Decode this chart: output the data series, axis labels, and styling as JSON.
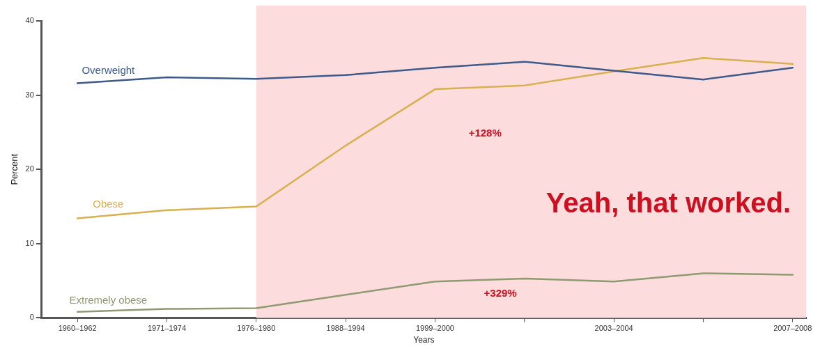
{
  "chart_data": {
    "type": "line",
    "xlabel": "Years",
    "ylabel": "Percent",
    "categories": [
      "1960–1962",
      "1971–1974",
      "1976–1980",
      "1988–1994",
      "1999–2000",
      null,
      "2003–2004",
      null,
      "2007–2008"
    ],
    "ylim": [
      0,
      40
    ],
    "yticks": [
      0,
      10,
      20,
      30,
      40
    ],
    "series": [
      {
        "name": "Overweight",
        "color": "#3e5a8a",
        "values": [
          31.6,
          32.4,
          32.2,
          32.7,
          33.7,
          34.5,
          33.3,
          32.1,
          33.7
        ]
      },
      {
        "name": "Obese",
        "color": "#d9b050",
        "values": [
          13.4,
          14.5,
          15.0,
          23.2,
          30.8,
          31.3,
          33.2,
          35.0,
          34.2
        ]
      },
      {
        "name": "Extremely obese",
        "color": "#8f9a72",
        "values": [
          0.8,
          1.2,
          1.3,
          3.1,
          4.9,
          5.3,
          4.9,
          6.0,
          5.8
        ]
      }
    ],
    "bands": [
      {
        "axis": "x",
        "from": "1976–1980",
        "to": "2007–2008",
        "color": "#fcdcdc"
      }
    ],
    "annotations": [
      "+128%",
      "+329%",
      "Yeah, that worked."
    ],
    "grid": false,
    "legend": false,
    "marker": "none",
    "line_style": "solid"
  }
}
